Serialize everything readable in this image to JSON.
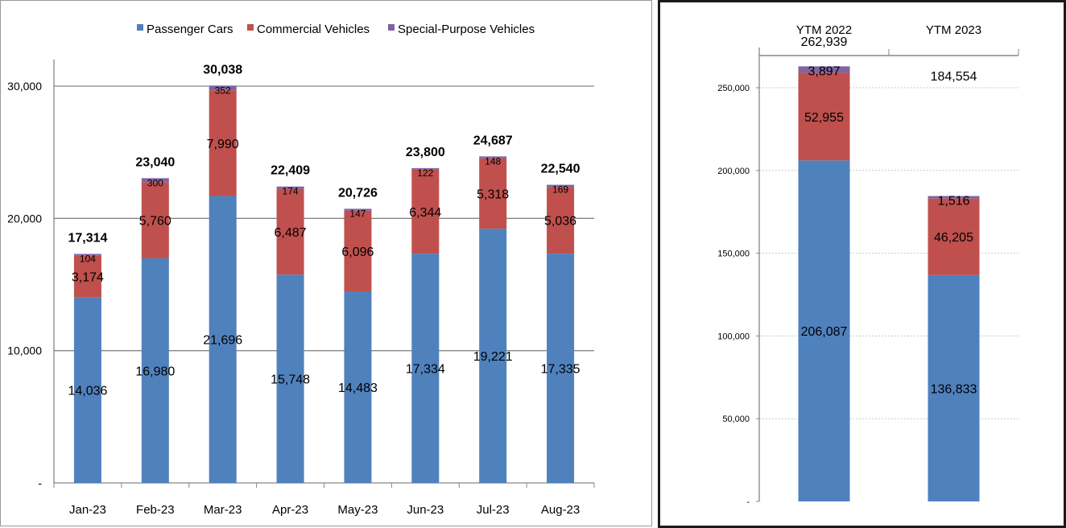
{
  "colors": {
    "passenger": "#4F81BD",
    "commercial": "#C0504D",
    "special": "#8064A2",
    "grid": "#868686",
    "axis": "#868686"
  },
  "chart_data": [
    {
      "type": "bar",
      "stacked": true,
      "title": "",
      "legend": {
        "position": "top",
        "entries": [
          "Passenger Cars",
          "Commercial Vehicles",
          "Special-Purpose Vehicles"
        ]
      },
      "categories": [
        "Jan-23",
        "Feb-23",
        "Mar-23",
        "Apr-23",
        "May-23",
        "Jun-23",
        "Jul-23",
        "Aug-23"
      ],
      "series": [
        {
          "name": "Passenger Cars",
          "values": [
            14036,
            16980,
            21696,
            15748,
            14483,
            17334,
            19221,
            17335
          ],
          "labels": [
            "14,036",
            "16,980",
            "21,696",
            "15,748",
            "14,483",
            "17,334",
            "19,221",
            "17,335"
          ]
        },
        {
          "name": "Commercial Vehicles",
          "values": [
            3174,
            5760,
            7990,
            6487,
            6096,
            6344,
            5318,
            5036
          ],
          "labels": [
            "3,174",
            "5,760",
            "7,990",
            "6,487",
            "6,096",
            "6,344",
            "5,318",
            "5,036"
          ]
        },
        {
          "name": "Special-Purpose Vehicles",
          "values": [
            104,
            300,
            352,
            174,
            147,
            122,
            148,
            169
          ],
          "labels": [
            "104",
            "300",
            "352",
            "174",
            "147",
            "122",
            "148",
            "169"
          ]
        }
      ],
      "totals": [
        "17,314",
        "23,040",
        "30,038",
        "22,409",
        "20,726",
        "23,800",
        "24,687",
        "22,540"
      ],
      "ylim": [
        0,
        32000
      ],
      "yticks": [
        0,
        10000,
        20000,
        30000
      ],
      "ytick_labels": [
        "-",
        "10,000",
        "20,000",
        "30,000"
      ],
      "grid": true,
      "xlabel": "",
      "ylabel": ""
    },
    {
      "type": "bar",
      "stacked": true,
      "title": "",
      "categories": [
        "YTM 2022",
        "YTM 2023"
      ],
      "series": [
        {
          "name": "Passenger Cars",
          "values": [
            206087,
            136833
          ],
          "labels": [
            "206,087",
            "136,833"
          ]
        },
        {
          "name": "Commercial Vehicles",
          "values": [
            52955,
            46205
          ],
          "labels": [
            "52,955",
            "46,205"
          ]
        },
        {
          "name": "Special-Purpose Vehicles",
          "values": [
            3897,
            1516
          ],
          "labels": [
            "3,897",
            "1,516"
          ]
        }
      ],
      "totals": [
        "262,939",
        "184,554"
      ],
      "ylim": [
        0,
        270000
      ],
      "yticks": [
        0,
        50000,
        100000,
        150000,
        200000,
        250000
      ],
      "ytick_labels": [
        "-",
        "50,000",
        "100,000",
        "150,000",
        "200,000",
        "250,000"
      ],
      "grid": true,
      "xaxis_position": "top",
      "xlabel": "",
      "ylabel": ""
    }
  ]
}
